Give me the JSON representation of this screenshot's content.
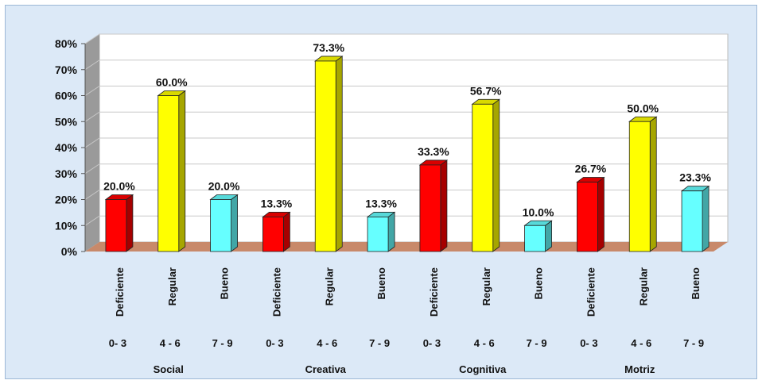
{
  "chart_data": {
    "type": "bar",
    "title": "",
    "xlabel": "",
    "ylabel": "",
    "ylim": [
      0,
      80
    ],
    "y_ticks": [
      "0%",
      "10%",
      "20%",
      "30%",
      "40%",
      "50%",
      "60%",
      "70%",
      "80%"
    ],
    "grid": true,
    "legend": "none",
    "groups": [
      {
        "name": "Social",
        "bars": [
          {
            "category": "Deficiente",
            "range": "0- 3",
            "value": 20.0,
            "label": "20.0%"
          },
          {
            "category": "Regular",
            "range": "4 - 6",
            "value": 60.0,
            "label": "60.0%"
          },
          {
            "category": "Bueno",
            "range": "7 - 9",
            "value": 20.0,
            "label": "20.0%"
          }
        ]
      },
      {
        "name": "Creativa",
        "bars": [
          {
            "category": "Deficiente",
            "range": "0- 3",
            "value": 13.3,
            "label": "13.3%"
          },
          {
            "category": "Regular",
            "range": "4 - 6",
            "value": 73.3,
            "label": "73.3%"
          },
          {
            "category": "Bueno",
            "range": "7 - 9",
            "value": 13.3,
            "label": "13.3%"
          }
        ]
      },
      {
        "name": "Cognitiva",
        "bars": [
          {
            "category": "Deficiente",
            "range": "0- 3",
            "value": 33.3,
            "label": "33.3%"
          },
          {
            "category": "Regular",
            "range": "4 - 6",
            "value": 56.7,
            "label": "56.7%"
          },
          {
            "category": "Bueno",
            "range": "7 - 9",
            "value": 10.0,
            "label": "10.0%"
          }
        ]
      },
      {
        "name": "Motriz",
        "bars": [
          {
            "category": "Deficiente",
            "range": "0- 3",
            "value": 26.7,
            "label": "26.7%"
          },
          {
            "category": "Regular",
            "range": "4 - 6",
            "value": 50.0,
            "label": "50.0%"
          },
          {
            "category": "Bueno",
            "range": "7 - 9",
            "value": 23.3,
            "label": "23.3%"
          }
        ]
      }
    ],
    "colors": {
      "Deficiente": "#ff0000",
      "Regular": "#ffff00",
      "Bueno": "#66ffff",
      "floor": "#c8896a",
      "wall": "#ffffff",
      "side_wall": "#9a9a9a"
    }
  }
}
